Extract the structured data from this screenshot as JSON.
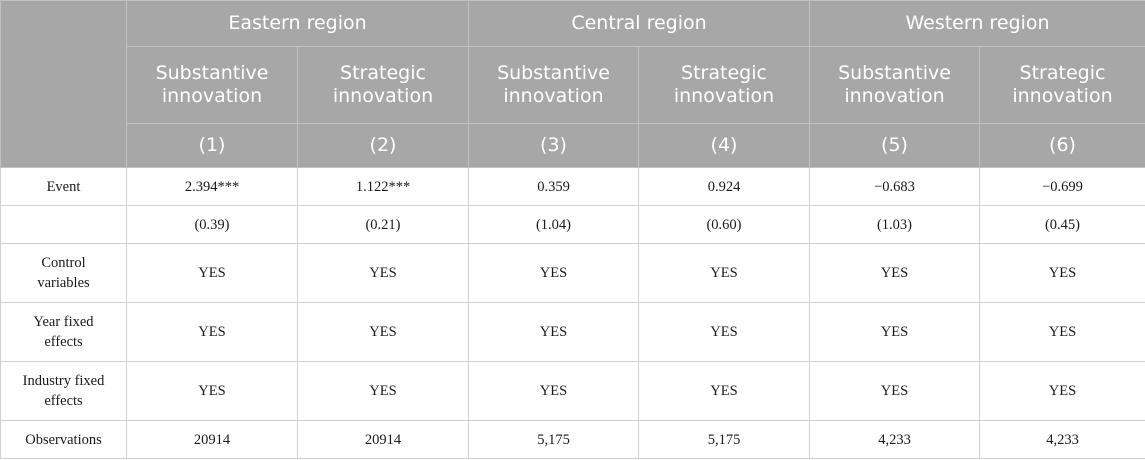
{
  "regions": [
    "Eastern region",
    "Central region",
    "Western region"
  ],
  "column_titles": [
    [
      "Substantive",
      "innovation"
    ],
    [
      "Strategic",
      "innovation"
    ],
    [
      "Substantive",
      "innovation"
    ],
    [
      "Strategic",
      "innovation"
    ],
    [
      "Substantive",
      "innovation"
    ],
    [
      "Strategic",
      "innovation"
    ]
  ],
  "column_numbers": [
    "(1)",
    "(2)",
    "(3)",
    "(4)",
    "(5)",
    "(6)"
  ],
  "rows": [
    {
      "label": [
        "Event"
      ],
      "values": [
        "2.394***",
        "1.122***",
        "0.359",
        "0.924",
        "−0.683",
        "−0.699"
      ]
    },
    {
      "label": [
        ""
      ],
      "values": [
        "(0.39)",
        "(0.21)",
        "(1.04)",
        "(0.60)",
        "(1.03)",
        "(0.45)"
      ]
    },
    {
      "label": [
        "Control",
        "variables"
      ],
      "values": [
        "YES",
        "YES",
        "YES",
        "YES",
        "YES",
        "YES"
      ]
    },
    {
      "label": [
        "Year fixed",
        "effects"
      ],
      "values": [
        "YES",
        "YES",
        "YES",
        "YES",
        "YES",
        "YES"
      ]
    },
    {
      "label": [
        "Industry fixed",
        "effects"
      ],
      "values": [
        "YES",
        "YES",
        "YES",
        "YES",
        "YES",
        "YES"
      ]
    },
    {
      "label": [
        "Observations"
      ],
      "values": [
        "20914",
        "20914",
        "5,175",
        "5,175",
        "4,233",
        "4,233"
      ]
    }
  ]
}
